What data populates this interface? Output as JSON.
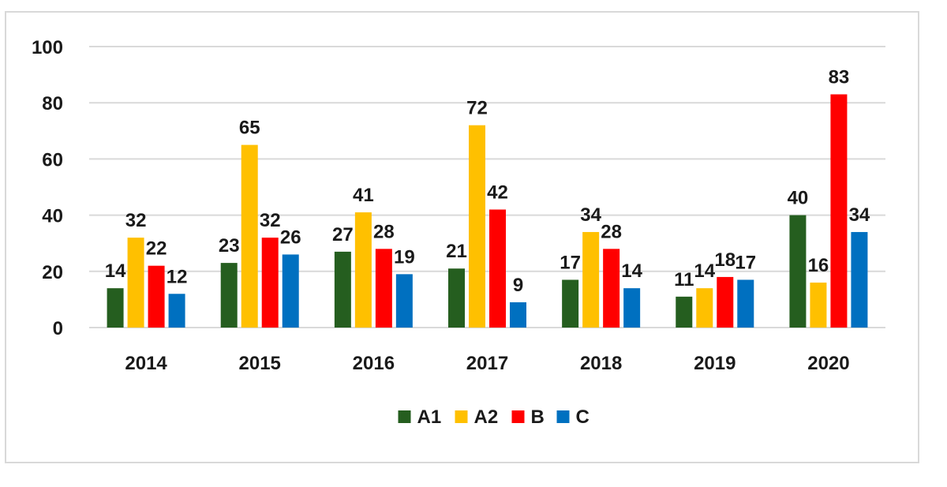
{
  "chart_data": {
    "type": "bar",
    "categories": [
      "2014",
      "2015",
      "2016",
      "2017",
      "2018",
      "2019",
      "2020"
    ],
    "series": [
      {
        "name": "A1",
        "color": "#255e1f",
        "values": [
          14,
          23,
          27,
          21,
          17,
          11,
          40
        ]
      },
      {
        "name": "A2",
        "color": "#ffc000",
        "values": [
          32,
          65,
          41,
          72,
          34,
          14,
          16
        ]
      },
      {
        "name": "B",
        "color": "#ff0000",
        "values": [
          22,
          32,
          28,
          42,
          28,
          18,
          83
        ]
      },
      {
        "name": "C",
        "color": "#0070c0",
        "values": [
          12,
          26,
          19,
          9,
          14,
          17,
          34
        ]
      }
    ],
    "ylim": [
      0,
      100
    ],
    "yticks": [
      "0",
      "20",
      "40",
      "60",
      "80",
      "100"
    ],
    "grid": true,
    "legend": "bottom"
  }
}
